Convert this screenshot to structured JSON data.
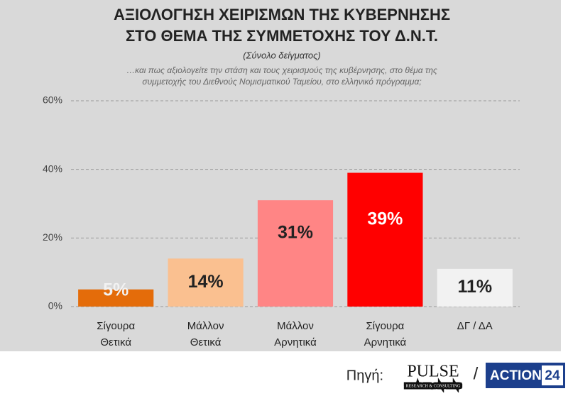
{
  "chart_data": {
    "type": "bar",
    "title": [
      "ΑΞΙΟΛΟΓΗΣΗ ΧΕΙΡΙΣΜΩΝ ΤΗΣ ΚΥΒΕΡΝΗΣΗΣ",
      "ΣΤΟ ΘΕΜΑ ΤΗΣ ΣΥΜΜΕΤΟΧΗΣ ΤΟΥ Δ.Ν.Τ."
    ],
    "subtitle": "(Σύνολο δείγματος)",
    "question": [
      "…και πως αξιολογείτε την στάση και τους χειρισμούς της κυβέρνησης, στο θέμα της",
      "συμμετοχής του Διεθνούς Νομισματικού Ταμείου, στο ελληνικό πρόγραμμα;"
    ],
    "categories": [
      [
        "Σίγουρα",
        "Θετικά"
      ],
      [
        "Μάλλον",
        "Θετικά"
      ],
      [
        "Μάλλον",
        "Αρνητικά"
      ],
      [
        "Σίγουρα",
        "Αρνητικά"
      ],
      [
        "ΔΓ / ΔΑ"
      ]
    ],
    "values": [
      5,
      14,
      31,
      39,
      11
    ],
    "value_labels": [
      "5%",
      "14%",
      "31%",
      "39%",
      "11%"
    ],
    "colors": [
      "#e46c0a",
      "#fac090",
      "#ff8585",
      "#ff0000",
      "#f2f2f2"
    ],
    "value_label_colors": [
      "#f2f2f2",
      "#222222",
      "#222222",
      "#ffffff",
      "#222222"
    ],
    "ylim": [
      0,
      60
    ],
    "yticks": [
      {
        "value": 0,
        "label": "0%"
      },
      {
        "value": 20,
        "label": "20%"
      },
      {
        "value": 40,
        "label": "40%"
      },
      {
        "value": 60,
        "label": "60%"
      }
    ],
    "grid": true
  },
  "source": {
    "label": "Πηγή:",
    "pulse": "PULSE",
    "pulse_sub": "RESEARCH & CONSULTING",
    "separator": "/",
    "action": "ACTION",
    "action_num": "24"
  }
}
